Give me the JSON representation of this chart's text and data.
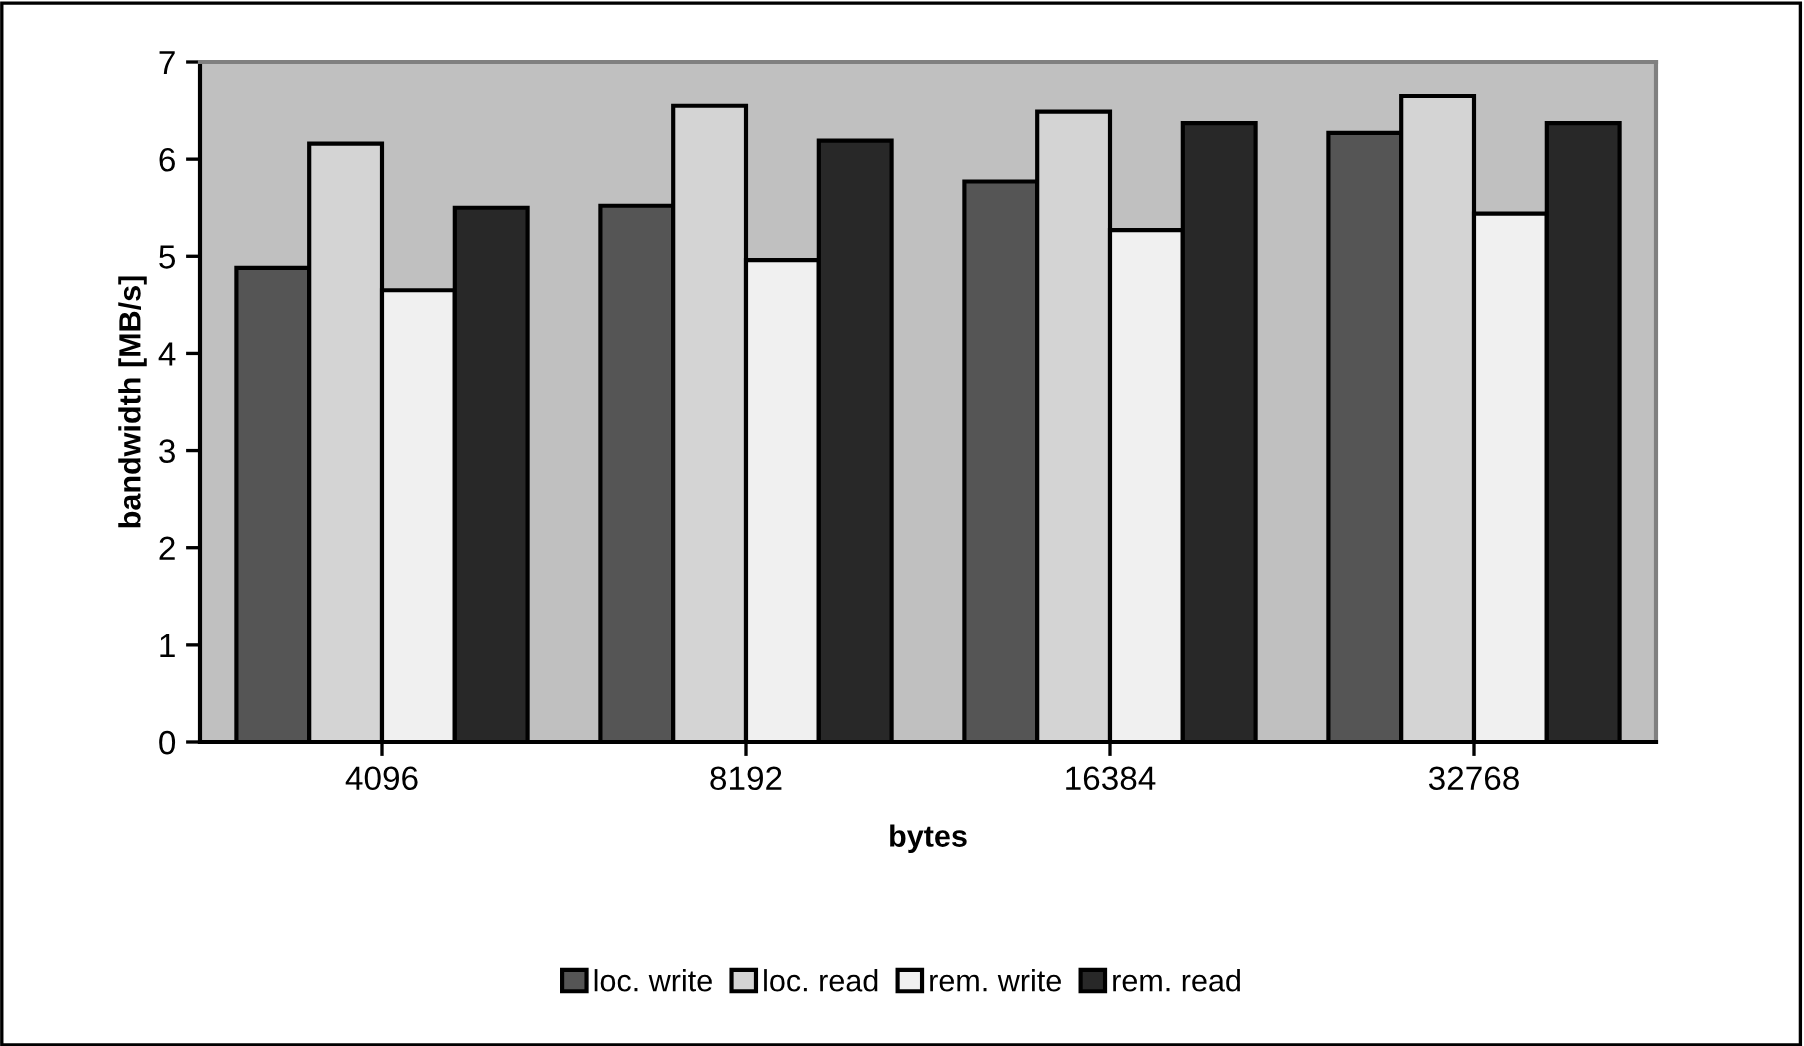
{
  "chart_data": {
    "type": "bar",
    "xlabel": "bytes",
    "ylabel": "bandwidth [MB/s]",
    "categories": [
      "4096",
      "8192",
      "16384",
      "32768"
    ],
    "series": [
      {
        "name": "loc. write",
        "color": "#555555",
        "values": [
          4.88,
          5.52,
          5.77,
          6.27
        ]
      },
      {
        "name": "loc. read",
        "color": "#d4d4d4",
        "values": [
          6.16,
          6.55,
          6.49,
          6.65
        ]
      },
      {
        "name": "rem. write",
        "color": "#f0f0f0",
        "values": [
          4.65,
          4.96,
          5.27,
          5.44
        ]
      },
      {
        "name": "rem. read",
        "color": "#282828",
        "values": [
          5.5,
          6.19,
          6.37,
          6.37
        ]
      }
    ],
    "ylim": [
      0,
      7
    ],
    "yticks": [
      0,
      1,
      2,
      3,
      4,
      5,
      6,
      7
    ],
    "grid": false,
    "legend": "bottom"
  }
}
